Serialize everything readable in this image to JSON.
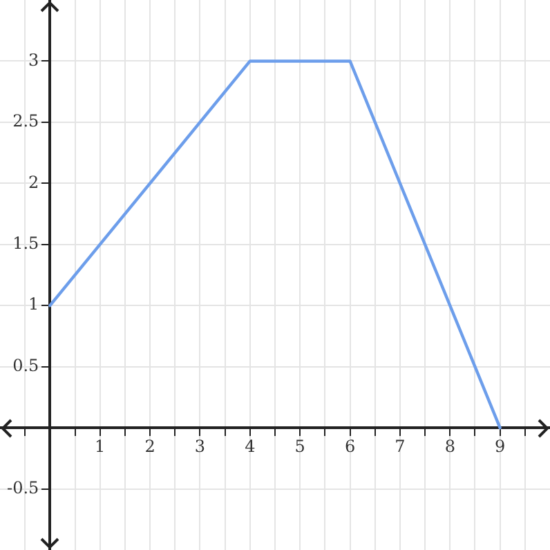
{
  "chart_data": {
    "type": "line",
    "x": [
      0,
      4,
      6,
      9
    ],
    "series": [
      {
        "color": "#6d9eeb",
        "values": [
          1,
          3,
          3,
          0
        ]
      }
    ],
    "xlim": [
      -1,
      10
    ],
    "ylim": [
      -1,
      3.5
    ],
    "xticks": [
      {
        "value": -0.5,
        "label": null
      },
      {
        "value": 0,
        "label": null
      },
      {
        "value": 0.5,
        "label": null
      },
      1,
      {
        "value": 1.5,
        "label": null
      },
      2,
      {
        "value": 2.5,
        "label": null
      },
      3,
      {
        "value": 3.5,
        "label": null
      },
      4,
      {
        "value": 4.5,
        "label": null
      },
      5,
      {
        "value": 5.5,
        "label": null
      },
      6,
      {
        "value": 6.5,
        "label": null
      },
      7,
      {
        "value": 7.5,
        "label": null
      },
      8,
      {
        "value": 8.5,
        "label": null
      },
      9,
      {
        "value": 9.5,
        "label": null
      }
    ],
    "yticks": [
      -0.5,
      {
        "value": 0,
        "label": null
      },
      0.5,
      1,
      1.5,
      2,
      2.5,
      3
    ],
    "grid": true,
    "marker": "none",
    "line_style": "solid",
    "legend": false
  }
}
